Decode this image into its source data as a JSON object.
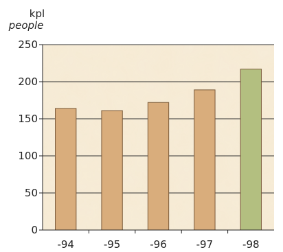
{
  "chart_data": {
    "type": "bar",
    "title": "",
    "xlabel": "",
    "ylabel": "",
    "unit_label": "kpl",
    "unit_label_translation": "people",
    "categories": [
      "-94",
      "-95",
      "-96",
      "-97",
      "-98"
    ],
    "values": [
      164,
      161,
      172,
      189,
      217
    ],
    "ylim": [
      0,
      250
    ],
    "yticks": [
      0,
      50,
      100,
      150,
      200,
      250
    ],
    "grid": true,
    "bar_colors": [
      "#d9ad7c",
      "#d9ad7c",
      "#d9ad7c",
      "#d9ad7c",
      "#b3bf80"
    ],
    "bar_edge_color": "#7a5a3a",
    "plot_background_color": "#f6ead3",
    "axis_color": "#222222"
  }
}
